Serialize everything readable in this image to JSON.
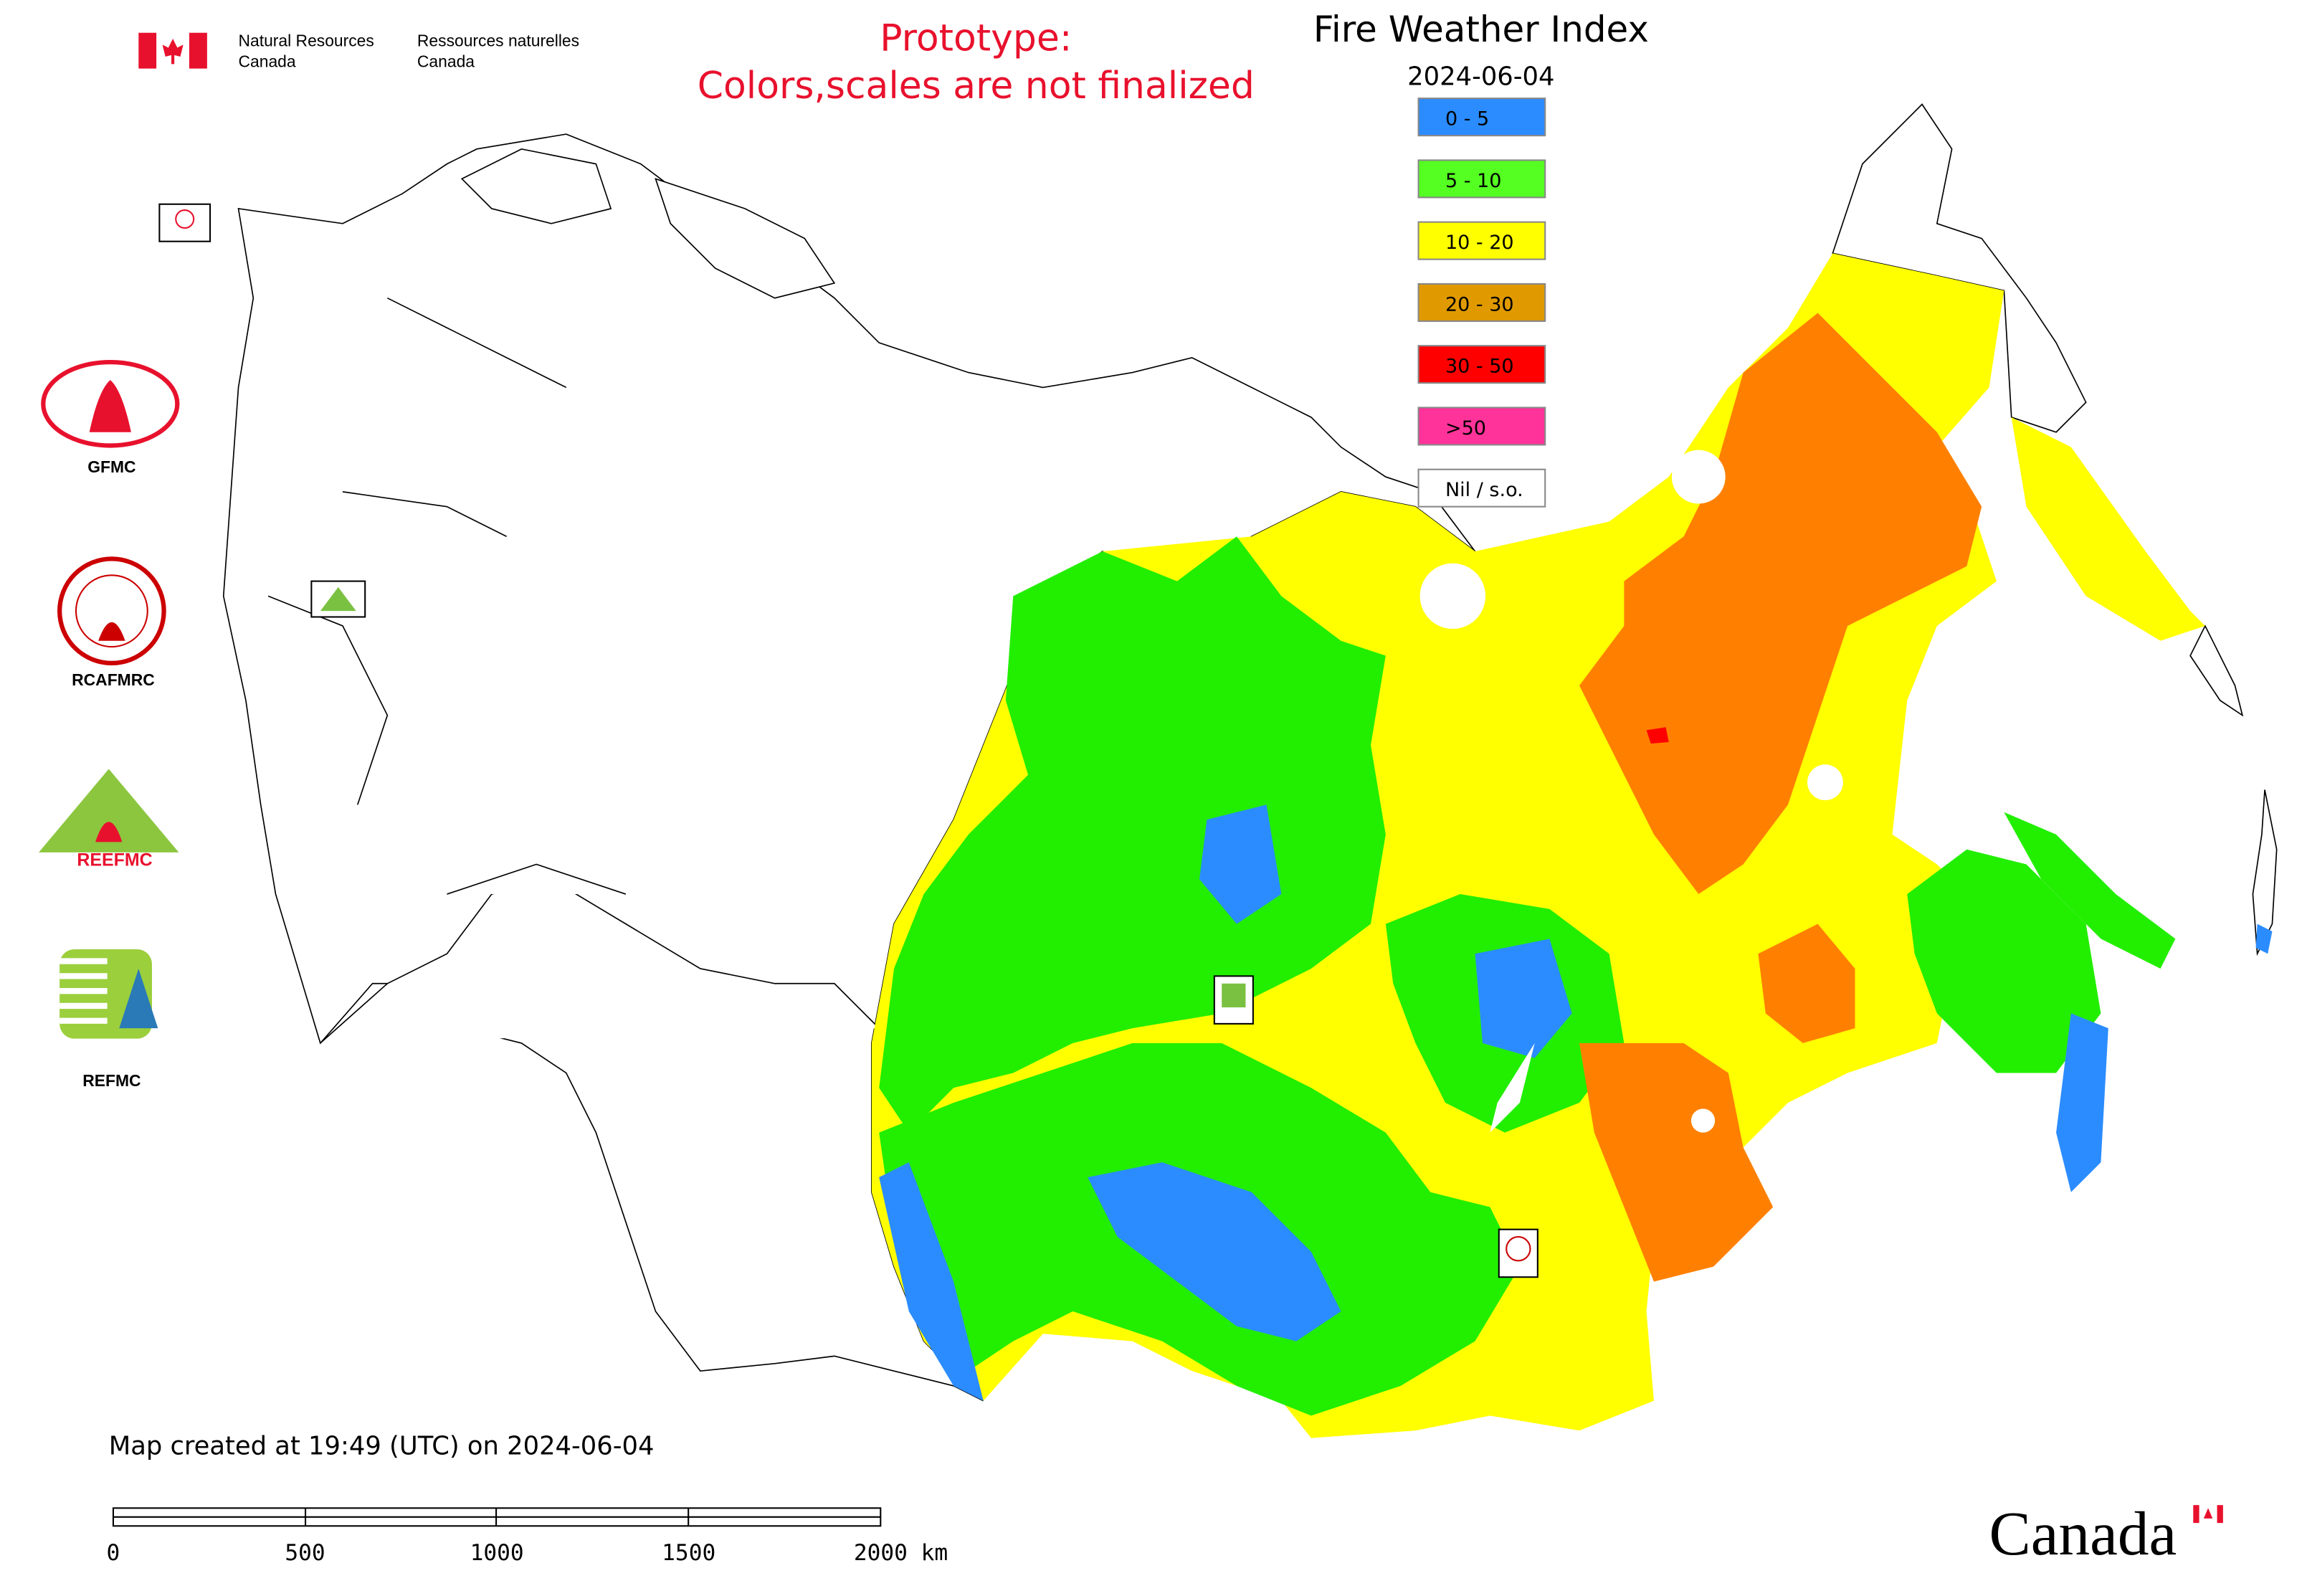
{
  "header": {
    "agency_en": [
      "Natural Resources",
      "Canada"
    ],
    "agency_fr": [
      "Ressources naturelles",
      "Canada"
    ]
  },
  "notice": [
    "Prototype:",
    "Colors,scales are not finalized"
  ],
  "legend": {
    "title": "Fire Weather Index",
    "date": "2024-06-04",
    "items": [
      {
        "label": "0 - 5",
        "color": "#2b8cff"
      },
      {
        "label": "5 - 10",
        "color": "#55ff22"
      },
      {
        "label": "10 - 20",
        "color": "#ffff00"
      },
      {
        "label": "20 - 30",
        "color": "#e09a00"
      },
      {
        "label": "30 - 50",
        "color": "#ff0000"
      },
      {
        "label": ">50",
        "color": "#ff3399"
      },
      {
        "label": "Nil / s.o.",
        "color": "#ffffff"
      }
    ]
  },
  "logos": [
    "GFMC",
    "RCAFMRC",
    "REEFMC",
    "REFMC"
  ],
  "footer": {
    "created": "Map created at 19:49 (UTC) on 2024-06-04",
    "scale_labels": [
      "0",
      "500",
      "1000",
      "1500",
      "2000 km"
    ],
    "wordmark": "Canada"
  }
}
